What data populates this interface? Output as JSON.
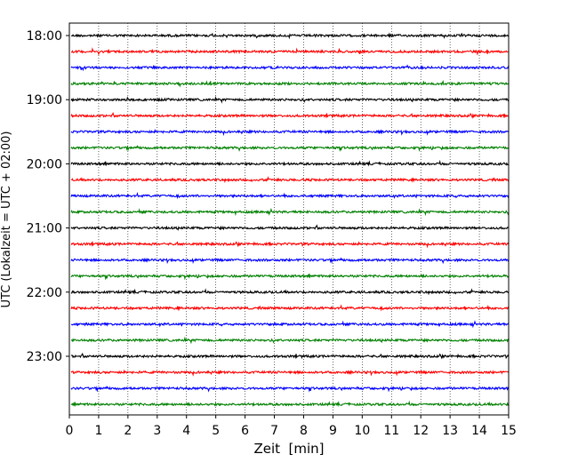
{
  "chart_data": {
    "type": "line",
    "title": "",
    "xlabel": "Zeit  [min]",
    "ylabel": "UTC (Lokalzeit = UTC + 02:00)",
    "xlim": [
      0,
      15
    ],
    "x_ticks": [
      0,
      1,
      2,
      3,
      4,
      5,
      6,
      7,
      8,
      9,
      10,
      11,
      12,
      13,
      14,
      15
    ],
    "y_tick_labels": [
      "18:00",
      "19:00",
      "20:00",
      "21:00",
      "22:00",
      "23:00"
    ],
    "grid": "vertical dotted lines at each minute",
    "trace_interval_minutes": 15,
    "trace_start": "18:00",
    "trace_count": 24,
    "trace_colors": [
      "#000000",
      "#ff0000",
      "#0000ff",
      "#008000"
    ],
    "traces": [
      {
        "start": "18:00"
      },
      {
        "start": "18:15"
      },
      {
        "start": "18:30"
      },
      {
        "start": "18:45"
      },
      {
        "start": "19:00"
      },
      {
        "start": "19:15"
      },
      {
        "start": "19:30"
      },
      {
        "start": "19:45"
      },
      {
        "start": "20:00"
      },
      {
        "start": "20:15"
      },
      {
        "start": "20:30"
      },
      {
        "start": "20:45"
      },
      {
        "start": "21:00"
      },
      {
        "start": "21:15"
      },
      {
        "start": "21:30"
      },
      {
        "start": "21:45"
      },
      {
        "start": "22:00"
      },
      {
        "start": "22:15"
      },
      {
        "start": "22:30"
      },
      {
        "start": "22:45"
      },
      {
        "start": "23:00"
      },
      {
        "start": "23:15"
      },
      {
        "start": "23:30"
      },
      {
        "start": "23:45"
      }
    ]
  }
}
